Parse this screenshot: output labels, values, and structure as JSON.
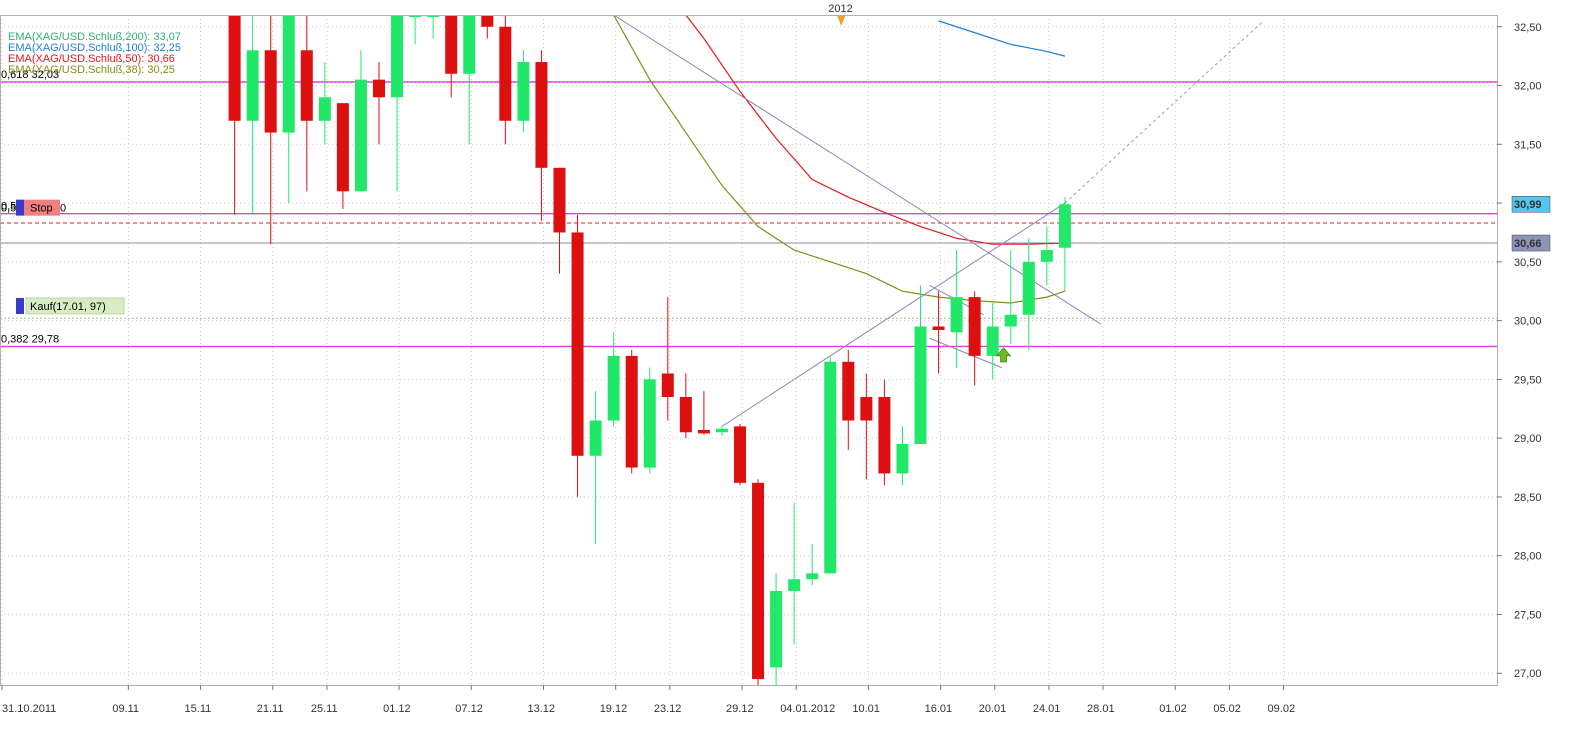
{
  "chart_data": {
    "type": "candlestick",
    "year_marker": "2012",
    "y_axis": {
      "range": [
        26.9,
        32.6
      ],
      "ticks": [
        "27,00",
        "27,50",
        "28,00",
        "28,50",
        "29,00",
        "29,50",
        "30,00",
        "30,50",
        "31,00",
        "31,50",
        "32,00",
        "32,50"
      ],
      "tick_values": [
        27,
        27.5,
        28,
        28.5,
        29,
        29.5,
        30,
        30.5,
        31,
        31.5,
        32,
        32.5
      ],
      "position": "right"
    },
    "x_axis": {
      "labels": [
        "31.10.2011",
        "09.11",
        "15.11",
        "21.11",
        "25.11",
        "01.12",
        "07.12",
        "13.12",
        "19.12",
        "23.12",
        "29.12",
        "04.01.2012",
        "10.01",
        "16.01",
        "20.01",
        "24.01",
        "28.01",
        "01.02",
        "05.02",
        "09.02"
      ],
      "label_positions": [
        0,
        7,
        11,
        15,
        18,
        22,
        26,
        30,
        34,
        37,
        41,
        44,
        48,
        52,
        55,
        58,
        61,
        65,
        68,
        71
      ]
    },
    "grid": true,
    "candles": [
      {
        "x": 12,
        "o": 32.6,
        "h": 32.6,
        "l": 30.9,
        "c": 31.7
      },
      {
        "x": 13,
        "o": 31.7,
        "h": 32.6,
        "l": 30.9,
        "c": 32.3
      },
      {
        "x": 14,
        "o": 32.3,
        "h": 32.6,
        "l": 30.65,
        "c": 31.6
      },
      {
        "x": 15,
        "o": 31.6,
        "h": 32.6,
        "l": 31.0,
        "c": 32.6
      },
      {
        "x": 16,
        "o": 32.3,
        "h": 32.6,
        "l": 31.1,
        "c": 31.7
      },
      {
        "x": 17,
        "o": 31.7,
        "h": 32.2,
        "l": 31.5,
        "c": 31.9
      },
      {
        "x": 18,
        "o": 31.85,
        "h": 31.85,
        "l": 30.95,
        "c": 31.1
      },
      {
        "x": 19,
        "o": 31.1,
        "h": 32.3,
        "l": 31.1,
        "c": 32.05
      },
      {
        "x": 20,
        "o": 32.05,
        "h": 32.2,
        "l": 31.5,
        "c": 31.9
      },
      {
        "x": 21,
        "o": 31.9,
        "h": 32.6,
        "l": 31.1,
        "c": 32.6
      },
      {
        "x": 22,
        "o": 32.6,
        "h": 32.6,
        "l": 32.35,
        "c": 32.6
      },
      {
        "x": 23,
        "o": 32.6,
        "h": 32.6,
        "l": 32.4,
        "c": 32.6
      },
      {
        "x": 24,
        "o": 32.6,
        "h": 32.6,
        "l": 31.9,
        "c": 32.1
      },
      {
        "x": 25,
        "o": 32.1,
        "h": 32.6,
        "l": 31.5,
        "c": 32.6
      },
      {
        "x": 26,
        "o": 32.6,
        "h": 32.6,
        "l": 32.4,
        "c": 32.5
      },
      {
        "x": 27,
        "o": 32.5,
        "h": 32.6,
        "l": 31.5,
        "c": 31.7
      },
      {
        "x": 28,
        "o": 31.7,
        "h": 32.3,
        "l": 31.6,
        "c": 32.2
      },
      {
        "x": 29,
        "o": 32.2,
        "h": 32.3,
        "l": 30.85,
        "c": 31.3
      },
      {
        "x": 30,
        "o": 31.3,
        "h": 31.3,
        "l": 30.4,
        "c": 30.75
      },
      {
        "x": 31,
        "o": 30.75,
        "h": 30.9,
        "l": 28.5,
        "c": 28.85
      },
      {
        "x": 32,
        "o": 28.85,
        "h": 29.4,
        "l": 28.1,
        "c": 29.15
      },
      {
        "x": 33,
        "o": 29.15,
        "h": 29.9,
        "l": 29.1,
        "c": 29.7
      },
      {
        "x": 34,
        "o": 29.7,
        "h": 29.75,
        "l": 28.7,
        "c": 28.75
      },
      {
        "x": 35,
        "o": 28.75,
        "h": 29.6,
        "l": 28.7,
        "c": 29.5
      },
      {
        "x": 36,
        "o": 29.55,
        "h": 30.2,
        "l": 29.15,
        "c": 29.35
      },
      {
        "x": 37,
        "o": 29.35,
        "h": 29.55,
        "l": 29.0,
        "c": 29.05
      },
      {
        "x": 38,
        "o": 29.07,
        "h": 29.4,
        "l": 29.03,
        "c": 29.04
      },
      {
        "x": 39,
        "o": 29.05,
        "h": 29.1,
        "l": 29.02,
        "c": 29.08
      },
      {
        "x": 40,
        "o": 29.1,
        "h": 29.12,
        "l": 28.6,
        "c": 28.62
      },
      {
        "x": 41,
        "o": 28.62,
        "h": 28.65,
        "l": 26.9,
        "c": 26.95
      },
      {
        "x": 42,
        "o": 27.05,
        "h": 27.85,
        "l": 26.9,
        "c": 27.7
      },
      {
        "x": 43,
        "o": 27.7,
        "h": 28.45,
        "l": 27.25,
        "c": 27.8
      },
      {
        "x": 44,
        "o": 27.8,
        "h": 28.1,
        "l": 27.75,
        "c": 27.85
      },
      {
        "x": 45,
        "o": 27.85,
        "h": 29.7,
        "l": 27.85,
        "c": 29.65
      },
      {
        "x": 46,
        "o": 29.65,
        "h": 29.75,
        "l": 28.9,
        "c": 29.15
      },
      {
        "x": 47,
        "o": 29.35,
        "h": 29.55,
        "l": 28.65,
        "c": 29.15
      },
      {
        "x": 48,
        "o": 29.35,
        "h": 29.5,
        "l": 28.6,
        "c": 28.7
      },
      {
        "x": 49,
        "o": 28.7,
        "h": 29.1,
        "l": 28.6,
        "c": 28.95
      },
      {
        "x": 50,
        "o": 28.95,
        "h": 30.3,
        "l": 28.95,
        "c": 29.95
      },
      {
        "x": 51,
        "o": 29.95,
        "h": 30.25,
        "l": 29.55,
        "c": 29.92
      },
      {
        "x": 52,
        "o": 29.9,
        "h": 30.6,
        "l": 29.6,
        "c": 30.2
      },
      {
        "x": 53,
        "o": 30.2,
        "h": 30.25,
        "l": 29.45,
        "c": 29.7
      },
      {
        "x": 54,
        "o": 29.7,
        "h": 30.15,
        "l": 29.5,
        "c": 29.95
      },
      {
        "x": 55,
        "o": 29.95,
        "h": 30.6,
        "l": 29.8,
        "c": 30.05
      },
      {
        "x": 56,
        "o": 30.05,
        "h": 30.7,
        "l": 29.75,
        "c": 30.5
      },
      {
        "x": 57,
        "o": 30.5,
        "h": 30.8,
        "l": 30.3,
        "c": 30.6
      },
      {
        "x": 58,
        "o": 30.62,
        "h": 31.05,
        "l": 30.25,
        "c": 30.99
      }
    ],
    "series": [
      {
        "name": "EMA(XAG/USD.Schluß,200): 33,07",
        "color": "#2fae75",
        "x": [],
        "y": []
      },
      {
        "name": "EMA(XAG/USD.Schluß,100): 32,25",
        "color": "#1f7fd6",
        "x": [
          51,
          53,
          55,
          57,
          58
        ],
        "y": [
          32.55,
          32.45,
          32.35,
          32.29,
          32.25
        ]
      },
      {
        "name": "EMA(XAG/USD.Schluß,50): 30,66",
        "color": "#e0191b",
        "x": [
          37,
          38,
          40,
          42,
          44,
          46,
          48,
          50,
          52,
          54,
          56,
          58
        ],
        "y": [
          32.6,
          32.4,
          31.95,
          31.55,
          31.2,
          31.05,
          30.92,
          30.8,
          30.7,
          30.65,
          30.65,
          30.66
        ]
      },
      {
        "name": "EMA(XAG/USD.Schluß,38): 30,25",
        "color": "#8a8a1a",
        "x": [
          33,
          35,
          37,
          39,
          41,
          43,
          45,
          47,
          49,
          51,
          53,
          55,
          57,
          58
        ],
        "y": [
          32.6,
          32.05,
          31.6,
          31.15,
          30.8,
          30.6,
          30.5,
          30.4,
          30.25,
          30.2,
          30.17,
          30.15,
          30.2,
          30.25
        ]
      }
    ],
    "horizontal_lines": [
      {
        "value": 32.03,
        "label": "0,618 32,03",
        "color": "#e040e0"
      },
      {
        "value": 30.91,
        "label": "0,5",
        "color": "#e040e0"
      },
      {
        "value": 29.78,
        "label": "0,382 29,78",
        "color": "#e040e0"
      },
      {
        "value": 30.66,
        "label": "",
        "color": "#8a8ab0"
      }
    ],
    "trend_lines": [
      {
        "x1": 39,
        "y1": 29.1,
        "x2": 58,
        "y2": 31.0,
        "color": "#8888bb",
        "dash": false
      },
      {
        "x1": 58,
        "y1": 31.0,
        "x2": 69,
        "y2": 32.55,
        "color": "#9999bb",
        "dash": true
      },
      {
        "x1": 33,
        "y1": 32.6,
        "x2": 60,
        "y2": 29.97,
        "color": "#8888bb",
        "dash": false
      },
      {
        "x1": 50.5,
        "y1": 30.3,
        "x2": 53.5,
        "y2": 30.05,
        "color": "#8888bb",
        "dash": false
      },
      {
        "x1": 50.5,
        "y1": 29.85,
        "x2": 54.5,
        "y2": 29.6,
        "color": "#8888bb",
        "dash": false
      }
    ],
    "stop_line": {
      "value": 30.83,
      "label": "Stop",
      "tag_value": "0",
      "color": "#e02020"
    },
    "entry_line": {
      "value": 30.02,
      "label": "Kauf(17.01, 97)",
      "color": "#a8c880"
    },
    "price_badges": [
      {
        "value": 30.99,
        "label": "30,99",
        "bg": "#56c6ee"
      },
      {
        "value": 30.66,
        "label": "30,66",
        "bg": "#8c94b8"
      }
    ],
    "buy_arrow_x": 54.6,
    "buy_arrow_value": 29.7
  }
}
